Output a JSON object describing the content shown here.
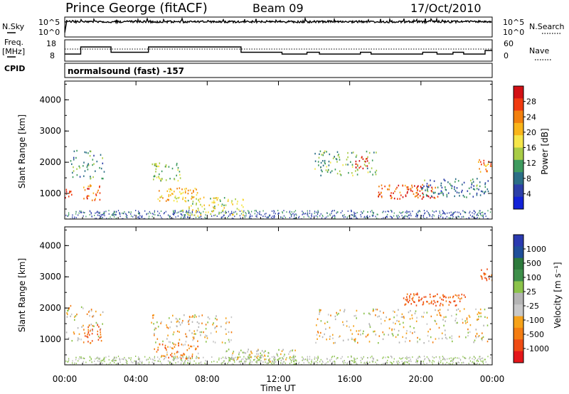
{
  "header": {
    "station": "Prince George (fitACF)",
    "beam": "Beam 09",
    "date": "17/Oct/2010"
  },
  "noise_panel": {
    "left_label": "N.Sky",
    "right_label": "N.Search",
    "left_ticks": [
      "10^5",
      "10^0"
    ],
    "right_ticks": [
      "10^5",
      "10^0"
    ]
  },
  "freq_panel": {
    "left_label_line1": "Freq.",
    "left_label_line2": "[MHz]",
    "right_label": "Nave",
    "left_ticks": [
      "18",
      "8"
    ],
    "right_ticks": [
      "60",
      "0"
    ]
  },
  "cpid": {
    "label": "CPID",
    "text": "normalsound (fast) -157"
  },
  "power_panel": {
    "ylabel": "Slant Range [km]",
    "yticks": [
      "4000",
      "3000",
      "2000",
      "1000"
    ],
    "colorbar_label": "Power [dB]",
    "colorbar_ticks": [
      "28",
      "24",
      "20",
      "16",
      "12",
      "8",
      "4"
    ],
    "colorbar_colors": [
      "#d21014",
      "#f03a10",
      "#f2800e",
      "#f9b51a",
      "#f5e64a",
      "#a8cc46",
      "#3f9b5f",
      "#2b6e86",
      "#2c3fa8",
      "#1222d8"
    ]
  },
  "velocity_panel": {
    "ylabel": "Slant Range [km]",
    "yticks": [
      "4000",
      "3000",
      "2000",
      "1000"
    ],
    "colorbar_label": "Velocity [m s⁻¹]",
    "colorbar_ticks": [
      "1000",
      "500",
      "100",
      "25",
      "-25",
      "-100",
      "-500",
      "-1000"
    ],
    "colorbar_colors": [
      "#2a3ab0",
      "#1f4f9a",
      "#2d7a3c",
      "#3e8f4a",
      "#8bc34a",
      "#b4b4b4",
      "#c8c8c8",
      "#f6a21a",
      "#f47d12",
      "#ef4c14",
      "#e4161a"
    ]
  },
  "x_axis": {
    "ticks": [
      "00:00",
      "04:00",
      "08:00",
      "12:00",
      "16:00",
      "20:00",
      "00:00"
    ],
    "label": "Time UT"
  },
  "chart_data": {
    "type": "heatmap",
    "title": "Prince George (fitACF) Beam 09 17/Oct/2010",
    "xlabel": "Time UT",
    "ylabel": "Slant Range [km]",
    "xlim_hours": [
      0,
      24
    ],
    "ylim_km": [
      180,
      4600
    ],
    "grid": false,
    "freq_steps_mhz": [
      {
        "t": 0.0,
        "f": 10
      },
      {
        "t": 0.9,
        "f": 14
      },
      {
        "t": 2.6,
        "f": 11
      },
      {
        "t": 4.7,
        "f": 14
      },
      {
        "t": 9.9,
        "f": 11
      },
      {
        "t": 12.2,
        "f": 10
      },
      {
        "t": 13.6,
        "f": 11
      },
      {
        "t": 14.3,
        "f": 10
      },
      {
        "t": 16.6,
        "f": 11
      },
      {
        "t": 17.2,
        "f": 10
      },
      {
        "t": 19.5,
        "f": 10
      },
      {
        "t": 20.1,
        "f": 11
      },
      {
        "t": 20.9,
        "f": 10
      },
      {
        "t": 21.8,
        "f": 11
      },
      {
        "t": 22.4,
        "f": 10
      },
      {
        "t": 23.0,
        "f": 10
      },
      {
        "t": 23.6,
        "f": 12
      },
      {
        "t": 24.0,
        "f": 12
      }
    ],
    "power_regions": [
      {
        "t0": 0.0,
        "t1": 0.4,
        "r0": 850,
        "r1": 1250,
        "power_db": 26
      },
      {
        "t0": 0.3,
        "t1": 2.2,
        "r0": 1500,
        "r1": 2400,
        "power_db": 10
      },
      {
        "t0": 1.0,
        "t1": 2.0,
        "r0": 800,
        "r1": 1300,
        "power_db": 24
      },
      {
        "t0": 4.8,
        "t1": 6.5,
        "r0": 1400,
        "r1": 2000,
        "power_db": 14
      },
      {
        "t0": 5.2,
        "t1": 7.5,
        "r0": 750,
        "r1": 1200,
        "power_db": 20
      },
      {
        "t0": 6.5,
        "t1": 10.0,
        "r0": 300,
        "r1": 900,
        "power_db": 16
      },
      {
        "t0": 14.0,
        "t1": 17.5,
        "r0": 1600,
        "r1": 2400,
        "power_db": 12
      },
      {
        "t0": 16.3,
        "t1": 17.0,
        "r0": 1800,
        "r1": 2200,
        "power_db": 28
      },
      {
        "t0": 17.5,
        "t1": 21.0,
        "r0": 850,
        "r1": 1300,
        "power_db": 26
      },
      {
        "t0": 20.0,
        "t1": 23.8,
        "r0": 900,
        "r1": 1500,
        "power_db": 8
      },
      {
        "t0": 23.2,
        "t1": 24.0,
        "r0": 1700,
        "r1": 2100,
        "power_db": 22
      }
    ],
    "velocity_regions": [
      {
        "t0": 0.0,
        "t1": 2.2,
        "r0": 900,
        "r1": 2100,
        "velocity_ms": 0
      },
      {
        "t0": 1.0,
        "t1": 2.0,
        "r0": 900,
        "r1": 1500,
        "velocity_ms": -250
      },
      {
        "t0": 4.8,
        "t1": 9.5,
        "r0": 900,
        "r1": 1800,
        "velocity_ms": 0
      },
      {
        "t0": 5.0,
        "t1": 7.5,
        "r0": 400,
        "r1": 900,
        "velocity_ms": -150
      },
      {
        "t0": 9.0,
        "t1": 13.0,
        "r0": 300,
        "r1": 700,
        "velocity_ms": 80
      },
      {
        "t0": 14.0,
        "t1": 23.8,
        "r0": 900,
        "r1": 2000,
        "velocity_ms": 0
      },
      {
        "t0": 19.0,
        "t1": 22.5,
        "r0": 2100,
        "r1": 2500,
        "velocity_ms": -250
      },
      {
        "t0": 23.3,
        "t1": 24.0,
        "r0": 2900,
        "r1": 3300,
        "velocity_ms": -250
      }
    ]
  }
}
